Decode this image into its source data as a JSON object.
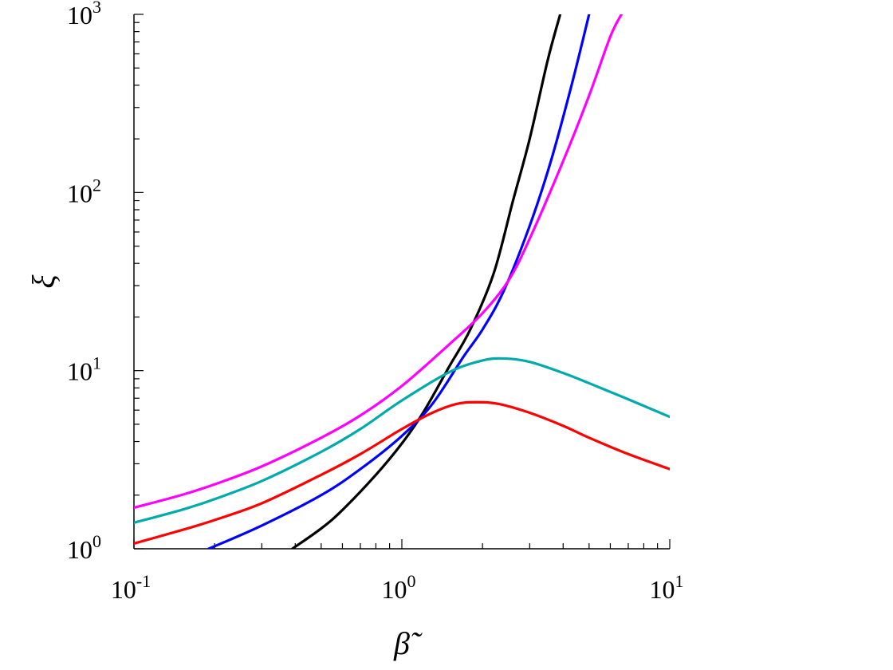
{
  "chart_data": {
    "type": "line",
    "xlabel": "β̃",
    "ylabel": "ξ",
    "xscale": "log",
    "yscale": "log",
    "xlim": [
      0.1,
      10
    ],
    "ylim": [
      1,
      1000
    ],
    "grid": false,
    "legend": "none",
    "x_ticks": [
      {
        "base": "10",
        "exp": "-1"
      },
      {
        "base": "10",
        "exp": "0"
      },
      {
        "base": "10",
        "exp": "1"
      }
    ],
    "y_ticks": [
      {
        "base": "10",
        "exp": "0"
      },
      {
        "base": "10",
        "exp": "1"
      },
      {
        "base": "10",
        "exp": "2"
      },
      {
        "base": "10",
        "exp": "3"
      }
    ],
    "series": [
      {
        "color": "#000000",
        "x": [
          0.39,
          0.5,
          0.6,
          0.8,
          1.0,
          1.2,
          1.5,
          1.8,
          2.2,
          2.6,
          3.0,
          3.5,
          3.9
        ],
        "y": [
          1.0,
          1.3,
          1.65,
          2.6,
          3.9,
          5.8,
          10.5,
          17.0,
          35,
          90,
          200,
          550,
          1000
        ]
      },
      {
        "color": "#0000ff",
        "x": [
          0.19,
          0.3,
          0.5,
          0.7,
          1.0,
          1.3,
          1.7,
          2.0,
          2.4,
          3.0,
          3.6,
          4.3,
          5.0
        ],
        "y": [
          1.0,
          1.35,
          2.0,
          2.8,
          4.3,
          6.5,
          12,
          17,
          28,
          65,
          150,
          400,
          1000
        ]
      },
      {
        "color": "#ff00ff",
        "x": [
          0.1,
          0.15,
          0.2,
          0.3,
          0.5,
          0.7,
          1.0,
          1.5,
          2.0,
          2.5,
          3.0,
          4.0,
          5.0,
          6.0,
          6.6
        ],
        "y": [
          1.7,
          2.0,
          2.3,
          2.9,
          4.2,
          5.6,
          8.2,
          14,
          21,
          32,
          55,
          150,
          350,
          750,
          1000
        ]
      },
      {
        "color": "#00aaaa",
        "x": [
          0.1,
          0.15,
          0.2,
          0.3,
          0.5,
          0.7,
          1.0,
          1.5,
          2.0,
          2.4,
          3.0,
          4.0,
          5.0,
          7.0,
          10.0
        ],
        "y": [
          1.4,
          1.65,
          1.9,
          2.4,
          3.5,
          4.7,
          6.8,
          9.8,
          11.4,
          11.7,
          11.2,
          9.7,
          8.5,
          6.9,
          5.5
        ]
      },
      {
        "color": "#ff0000",
        "x": [
          0.1,
          0.15,
          0.2,
          0.3,
          0.5,
          0.7,
          1.0,
          1.3,
          1.6,
          1.9,
          2.3,
          3.0,
          4.0,
          5.0,
          7.0,
          10.0
        ],
        "y": [
          1.07,
          1.27,
          1.45,
          1.8,
          2.6,
          3.4,
          4.7,
          5.8,
          6.5,
          6.65,
          6.5,
          5.8,
          4.9,
          4.2,
          3.4,
          2.8
        ]
      }
    ]
  }
}
